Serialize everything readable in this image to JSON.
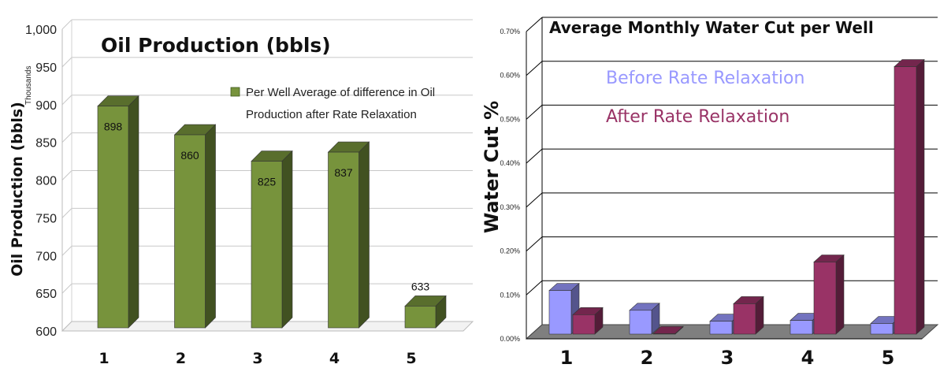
{
  "chart_data": [
    {
      "type": "bar",
      "title": "Oil Production (bbls)",
      "xlabel": "",
      "ylabel": "Oil Production (bbls)",
      "y_units_label": "Thousands",
      "categories": [
        "1",
        "2",
        "3",
        "4",
        "5"
      ],
      "series": [
        {
          "name": "Per Well Average of difference in Oil Production after Rate Relaxation",
          "values": [
            898,
            860,
            825,
            837,
            633
          ],
          "color": "#77933c"
        }
      ],
      "data_labels": [
        "898",
        "860",
        "825",
        "837",
        "633"
      ],
      "yticks": [
        "600",
        "650",
        "700",
        "750",
        "800",
        "850",
        "900",
        "950",
        "1,000"
      ],
      "ylim": [
        600,
        1000
      ],
      "grid": true,
      "legend_position": "top-right",
      "legend_lines": [
        "Per Well Average of difference in Oil",
        "Production after Rate Relaxation"
      ]
    },
    {
      "type": "bar",
      "title": "Average Monthly Water Cut per Well",
      "xlabel": "",
      "ylabel": "Water Cut %",
      "categories": [
        "1",
        "2",
        "3",
        "4",
        "5"
      ],
      "series": [
        {
          "name": "Before Rate Relaxation",
          "values": [
            0.11,
            0.065,
            0.04,
            0.042,
            0.035
          ],
          "color": "#9999ff"
        },
        {
          "name": "After Rate Relaxation",
          "values": [
            0.055,
            0.012,
            0.08,
            0.175,
            0.62
          ],
          "color": "#993366"
        }
      ],
      "yticks": [
        "0.00%",
        "0.10%",
        "0.20%",
        "0.30%",
        "0.40%",
        "0.50%",
        "0.60%",
        "0.70%"
      ],
      "ylim": [
        0,
        0.7
      ],
      "grid": true,
      "legend_position": "top-left"
    }
  ]
}
